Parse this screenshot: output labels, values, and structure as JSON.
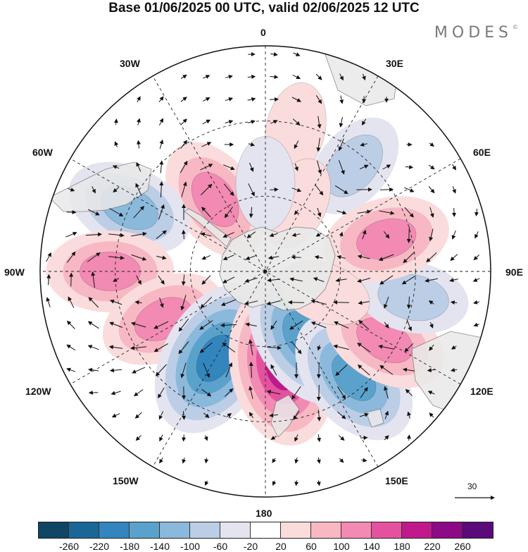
{
  "title": "Base 01/06/2025 00 UTC, valid 02/06/2025 12 UTC",
  "brand": "MODES",
  "brand_mark": "©",
  "projection": "south-polar-stereographic",
  "longitude_labels": {
    "lon_0": "0",
    "lon_30e": "30E",
    "lon_60e": "60E",
    "lon_90e": "90E",
    "lon_120e": "120E",
    "lon_150e": "150E",
    "lon_180": "180",
    "lon_150w": "150W",
    "lon_120w": "120W",
    "lon_90w": "90W",
    "lon_60w": "60W",
    "lon_30w": "30W"
  },
  "wind_reference": {
    "label": "30"
  },
  "colorbar": {
    "colors": [
      "#0f4565",
      "#1a6696",
      "#3385bd",
      "#5aa2cc",
      "#8bb9dc",
      "#bccde6",
      "#e4e4f0",
      "#ffffff",
      "#fbdcdc",
      "#f7b8c3",
      "#f28ab3",
      "#e4529f",
      "#c0198c",
      "#8d0a87",
      "#5b0a7a"
    ],
    "tick_labels": [
      "-260",
      "-220",
      "-180",
      "-140",
      "-100",
      "-60",
      "-20",
      "20",
      "60",
      "100",
      "140",
      "180",
      "220",
      "260"
    ]
  },
  "anomaly_features": [
    {
      "sign": "positive",
      "level": 140,
      "lon": -35,
      "lat": -55
    },
    {
      "sign": "negative",
      "level": -140,
      "lon": -65,
      "lat": -30
    },
    {
      "sign": "positive",
      "level": 140,
      "lon": -90,
      "lat": -28
    },
    {
      "sign": "positive",
      "level": 140,
      "lon": -115,
      "lat": -45
    },
    {
      "sign": "negative",
      "level": -220,
      "lon": -150,
      "lat": -50
    },
    {
      "sign": "positive",
      "level": 220,
      "lon": 170,
      "lat": -52
    },
    {
      "sign": "negative",
      "level": -180,
      "lon": 150,
      "lat": -60
    },
    {
      "sign": "negative",
      "level": -180,
      "lon": 140,
      "lat": -35
    },
    {
      "sign": "positive",
      "level": 140,
      "lon": 120,
      "lat": -35
    },
    {
      "sign": "negative",
      "level": -100,
      "lon": 100,
      "lat": -30
    },
    {
      "sign": "positive",
      "level": 140,
      "lon": 75,
      "lat": -40
    },
    {
      "sign": "negative",
      "level": -100,
      "lon": 40,
      "lat": -35
    },
    {
      "sign": "positive",
      "level": 60,
      "lon": 12,
      "lat": -32
    },
    {
      "sign": "positive",
      "level": 60,
      "lon": 25,
      "lat": -60
    },
    {
      "sign": "positive",
      "level": 60,
      "lon": 110,
      "lat": -65
    },
    {
      "sign": "negative",
      "level": -60,
      "lon": 0,
      "lat": -55
    }
  ]
}
